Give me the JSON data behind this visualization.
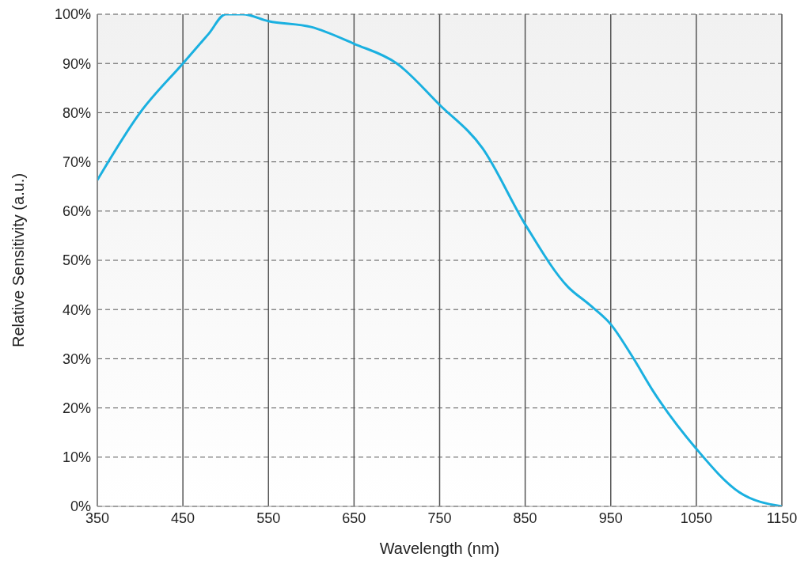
{
  "chart_data": {
    "type": "line",
    "xlabel": "Wavelength (nm)",
    "ylabel": "Relative Sensitivity (a.u.)",
    "x": [
      350,
      400,
      450,
      480,
      500,
      520,
      550,
      600,
      650,
      700,
      750,
      800,
      850,
      900,
      925,
      950,
      975,
      1000,
      1050,
      1100,
      1150
    ],
    "series": [
      {
        "color": "#1ab0e0",
        "values": [
          66.3,
          80,
          90,
          96,
          100,
          100,
          98.6,
          97.4,
          94,
          90,
          81.6,
          72.8,
          57.3,
          44.6,
          41,
          37,
          30.5,
          23.3,
          11.7,
          2.9,
          0
        ]
      }
    ],
    "xlim": [
      350,
      1150
    ],
    "xticks": [
      350,
      450,
      550,
      650,
      750,
      850,
      950,
      1050,
      1150
    ],
    "ylim": [
      0,
      100
    ],
    "yticks": [
      {
        "value": 0,
        "label": "0%"
      },
      {
        "value": 10,
        "label": "10%"
      },
      {
        "value": 20,
        "label": "20%"
      },
      {
        "value": 30,
        "label": "30%"
      },
      {
        "value": 40,
        "label": "40%"
      },
      {
        "value": 50,
        "label": "50%"
      },
      {
        "value": 60,
        "label": "60%"
      },
      {
        "value": 70,
        "label": "70%"
      },
      {
        "value": 80,
        "label": "80%"
      },
      {
        "value": 90,
        "label": "90%"
      },
      {
        "value": 100,
        "label": "100%"
      }
    ],
    "grid": true,
    "marker": "none",
    "line_style": "solid"
  }
}
